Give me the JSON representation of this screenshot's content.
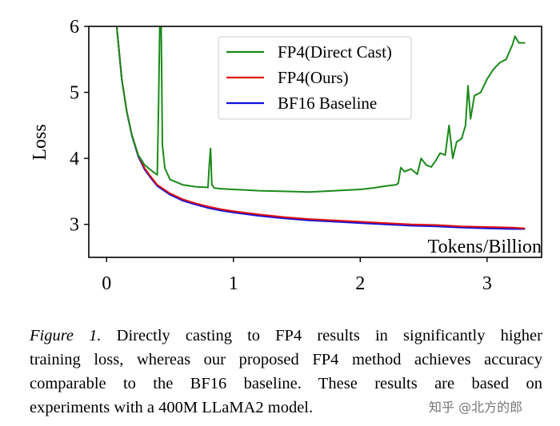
{
  "chart_data": {
    "type": "line",
    "xlabel": "Tokens/Billion",
    "ylabel": "Loss",
    "xlim": [
      -0.14,
      3.43
    ],
    "ylim": [
      2.5,
      6
    ],
    "xticks": [
      0,
      1,
      2,
      3
    ],
    "yticks": [
      3,
      4,
      5,
      6
    ],
    "grid": false,
    "legend_placement": "top-center",
    "series": [
      {
        "name": "FP4(Direct Cast)",
        "color": "#1a8a1a",
        "x": [
          0.08,
          0.12,
          0.16,
          0.2,
          0.25,
          0.3,
          0.35,
          0.4,
          0.41,
          0.42,
          0.43,
          0.44,
          0.46,
          0.5,
          0.6,
          0.7,
          0.8,
          0.81,
          0.82,
          0.83,
          0.85,
          0.9,
          1.0,
          1.1,
          1.2,
          1.4,
          1.6,
          1.8,
          2.0,
          2.1,
          2.2,
          2.28,
          2.3,
          2.32,
          2.35,
          2.4,
          2.45,
          2.48,
          2.52,
          2.56,
          2.6,
          2.63,
          2.67,
          2.7,
          2.73,
          2.76,
          2.8,
          2.83,
          2.85,
          2.87,
          2.9,
          2.95,
          3.0,
          3.05,
          3.1,
          3.15,
          3.2,
          3.22,
          3.25,
          3.3
        ],
        "y": [
          6.0,
          5.2,
          4.7,
          4.35,
          4.05,
          3.9,
          3.82,
          3.75,
          4.8,
          6.1,
          6.1,
          4.2,
          3.85,
          3.68,
          3.6,
          3.57,
          3.56,
          3.9,
          4.15,
          3.6,
          3.55,
          3.54,
          3.53,
          3.52,
          3.51,
          3.5,
          3.49,
          3.51,
          3.53,
          3.55,
          3.58,
          3.6,
          3.62,
          3.86,
          3.8,
          3.84,
          3.76,
          4.0,
          3.9,
          3.87,
          3.98,
          4.08,
          4.05,
          4.5,
          4.0,
          4.25,
          4.3,
          4.5,
          5.1,
          4.6,
          4.95,
          5.0,
          5.2,
          5.35,
          5.45,
          5.5,
          5.72,
          5.85,
          5.75,
          5.75
        ]
      },
      {
        "name": "FP4(Ours)",
        "color": "#e01010",
        "x": [
          0.08,
          0.12,
          0.16,
          0.2,
          0.25,
          0.3,
          0.35,
          0.4,
          0.5,
          0.6,
          0.7,
          0.8,
          0.9,
          1.0,
          1.2,
          1.4,
          1.6,
          1.8,
          2.0,
          2.2,
          2.4,
          2.6,
          2.8,
          3.0,
          3.2,
          3.3
        ],
        "y": [
          6.0,
          5.2,
          4.7,
          4.35,
          4.05,
          3.85,
          3.72,
          3.6,
          3.47,
          3.38,
          3.32,
          3.27,
          3.23,
          3.2,
          3.15,
          3.11,
          3.08,
          3.06,
          3.04,
          3.02,
          3.0,
          2.99,
          2.97,
          2.96,
          2.95,
          2.94
        ]
      },
      {
        "name": "BF16 Baseline",
        "color": "#1010e0",
        "x": [
          0.08,
          0.12,
          0.16,
          0.2,
          0.25,
          0.3,
          0.35,
          0.4,
          0.5,
          0.6,
          0.7,
          0.8,
          0.9,
          1.0,
          1.2,
          1.4,
          1.6,
          1.8,
          2.0,
          2.2,
          2.4,
          2.6,
          2.8,
          3.0,
          3.2,
          3.3
        ],
        "y": [
          6.0,
          5.2,
          4.7,
          4.34,
          4.03,
          3.83,
          3.7,
          3.58,
          3.45,
          3.36,
          3.3,
          3.25,
          3.21,
          3.18,
          3.13,
          3.09,
          3.06,
          3.04,
          3.02,
          3.0,
          2.98,
          2.97,
          2.95,
          2.94,
          2.93,
          2.93
        ]
      }
    ]
  },
  "caption": {
    "label": "Figure 1.",
    "lines": [
      " Directly casting to FP4 results in significantly higher",
      "training loss, whereas our proposed FP4 method achieves accuracy",
      "comparable to the BF16 baseline.  These results are based on",
      "experiments with a 400M LLaMA2 model."
    ]
  },
  "watermark": "知乎 @北方的郎"
}
